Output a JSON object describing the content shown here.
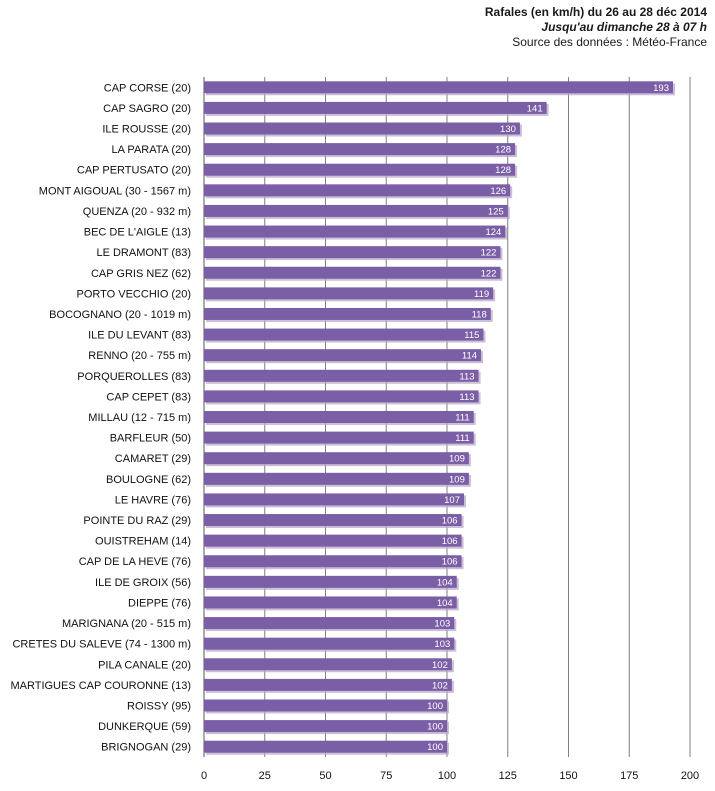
{
  "chart_data": {
    "type": "bar",
    "orientation": "horizontal",
    "title": "Rafales (en km/h) du 26 au 28 déc 2014",
    "subtitle": "Jusqu'au dimanche  28 à 07 h",
    "source": "Source des données : Météo-France",
    "xlim": [
      0,
      200
    ],
    "ticks": [
      0,
      25,
      50,
      75,
      100,
      125,
      150,
      175,
      200
    ],
    "grid": true,
    "bar_color": "#7b5fa6",
    "bar_shadow": "#b9aac9",
    "label_color": "#ffffff",
    "grid_color": "#7f7f7f",
    "categories": [
      "CAP CORSE (20)",
      "CAP SAGRO (20)",
      "ILE ROUSSE  (20)",
      "LA PARATA (20)",
      "CAP PERTUSATO  (20)",
      "MONT AIGOUAL (30 - 1567 m)",
      "QUENZA (20 - 932 m)",
      "BEC DE L'AIGLE (13)",
      "LE DRAMONT  (83)",
      "CAP GRIS NEZ (62)",
      "PORTO VECCHIO  (20)",
      "BOCOGNANO (20 - 1019 m)",
      "ILE DU LEVANT  (83)",
      "RENNO (20 - 755 m)",
      "PORQUEROLLES (83)",
      "CAP CEPET (83)",
      "MILLAU (12 - 715 m)",
      "BARFLEUR (50)",
      "CAMARET (29)",
      "BOULOGNE (62)",
      "LE HAVRE (76)",
      "POINTE DU RAZ (29)",
      "OUISTREHAM  (14)",
      "CAP DE LA HEVE (76)",
      "ILE DE GROIX (56)",
      "DIEPPE (76)",
      "MARIGNANA  (20 - 515 m)",
      "CRETES DU SALEVE (74 - 1300 m)",
      "PILA CANALE (20)",
      "MARTIGUES  CAP COURONNE (13)",
      "ROISSY (95)",
      "DUNKERQUE  (59)",
      "BRIGNOGAN (29)"
    ],
    "values": [
      193,
      141,
      130,
      128,
      128,
      126,
      125,
      124,
      122,
      122,
      119,
      118,
      115,
      114,
      113,
      113,
      111,
      111,
      109,
      109,
      107,
      106,
      106,
      106,
      104,
      104,
      103,
      103,
      102,
      102,
      100,
      100,
      100
    ]
  }
}
